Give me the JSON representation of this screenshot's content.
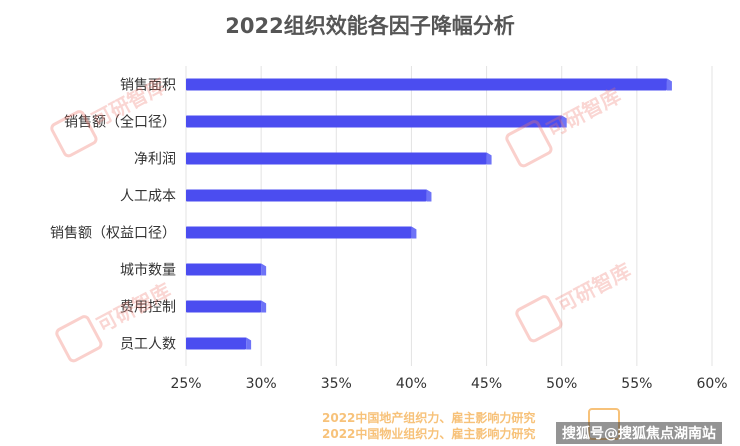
{
  "chart_data": {
    "type": "bar",
    "orientation": "horizontal",
    "title": "2022组织效能各因子降幅分析",
    "categories": [
      "销售面积",
      "销售额（全口径）",
      "净利润",
      "人工成本",
      "销售额（权益口径）",
      "城市数量",
      "费用控制",
      "员工人数"
    ],
    "values": [
      57,
      50,
      45,
      41,
      40,
      30,
      30,
      29
    ],
    "xlim": [
      25,
      60
    ],
    "xticks": [
      "25%",
      "30%",
      "35%",
      "40%",
      "45%",
      "50%",
      "55%",
      "60%"
    ],
    "xlabel": "",
    "ylabel": "",
    "grid": "vertical",
    "bar_color": "#4b4df0",
    "bar_side_color": "#6e73f7"
  },
  "watermark": {
    "brand": "可研智库",
    "footer_lines": [
      "2022中国地产组织力、雇主影响力研究",
      "2022中国物业组织力、雇主影响力研究"
    ],
    "source_label": "搜狐号@搜狐焦点湖南站"
  }
}
